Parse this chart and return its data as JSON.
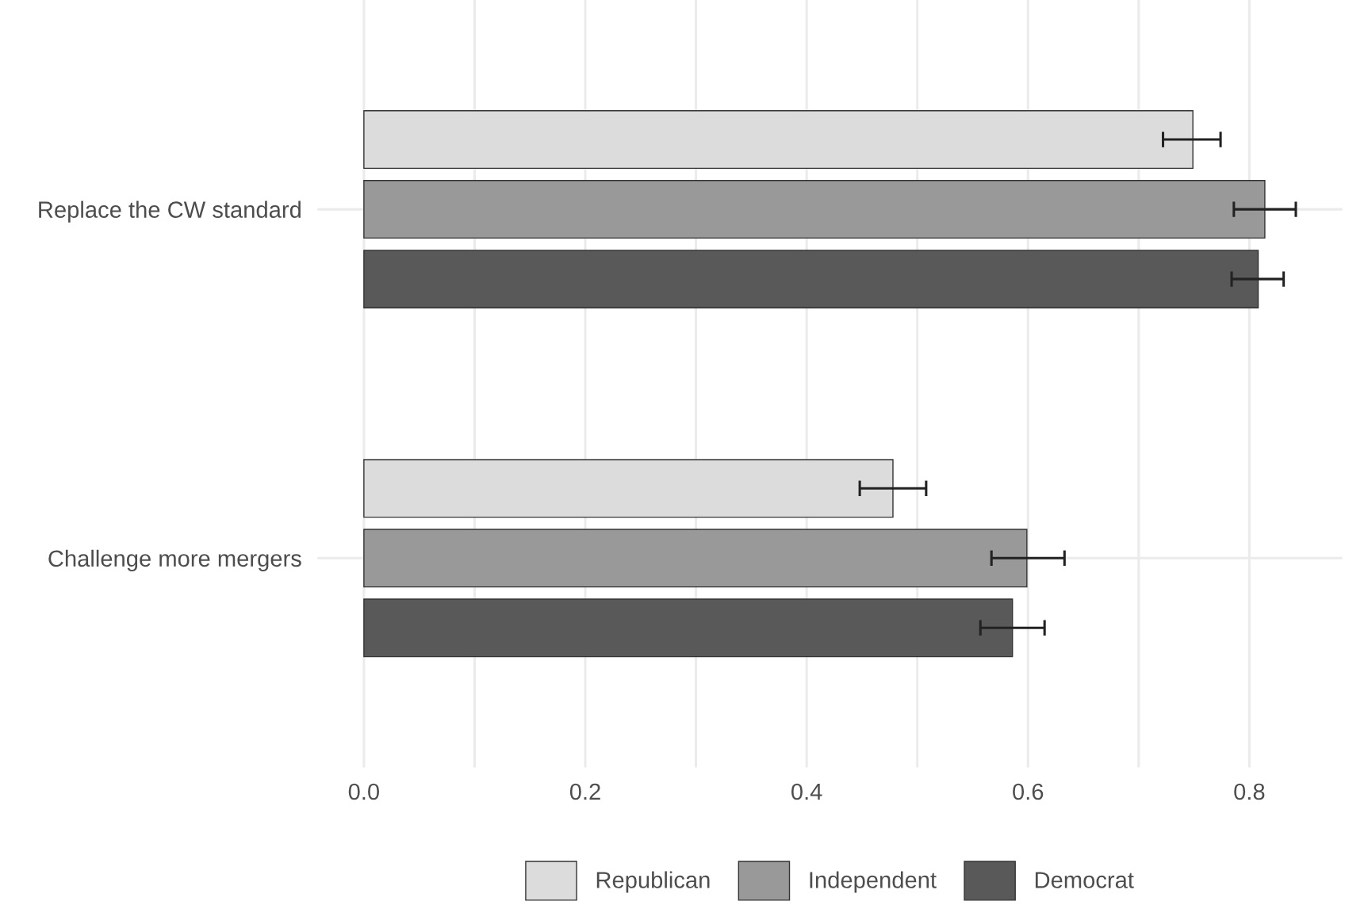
{
  "chart_data": {
    "type": "bar",
    "orientation": "horizontal",
    "categories": [
      "Replace the CW standard",
      "Challenge more mergers"
    ],
    "series": [
      {
        "name": "Republican",
        "color": "#dcdcdc",
        "values": [
          0.749,
          0.478
        ],
        "errors": [
          [
            0.722,
            0.774
          ],
          [
            0.448,
            0.508
          ]
        ]
      },
      {
        "name": "Independent",
        "color": "#999999",
        "values": [
          0.814,
          0.599
        ],
        "errors": [
          [
            0.786,
            0.842
          ],
          [
            0.567,
            0.633
          ]
        ]
      },
      {
        "name": "Democrat",
        "color": "#595959",
        "values": [
          0.808,
          0.586
        ],
        "errors": [
          [
            0.784,
            0.831
          ],
          [
            0.557,
            0.615
          ]
        ]
      }
    ],
    "xlim": [
      -0.042,
      0.884
    ],
    "xticks": [
      {
        "value": 0,
        "label": "0.0"
      },
      {
        "value": 0.1,
        "label": null
      },
      {
        "value": 0.2,
        "label": "0.2"
      },
      {
        "value": 0.3,
        "label": null
      },
      {
        "value": 0.4,
        "label": "0.4"
      },
      {
        "value": 0.5,
        "label": null
      },
      {
        "value": 0.6,
        "label": "0.6"
      },
      {
        "value": 0.7,
        "label": null
      },
      {
        "value": 0.8,
        "label": "0.8"
      }
    ],
    "grid": true,
    "legend": "bottom"
  }
}
